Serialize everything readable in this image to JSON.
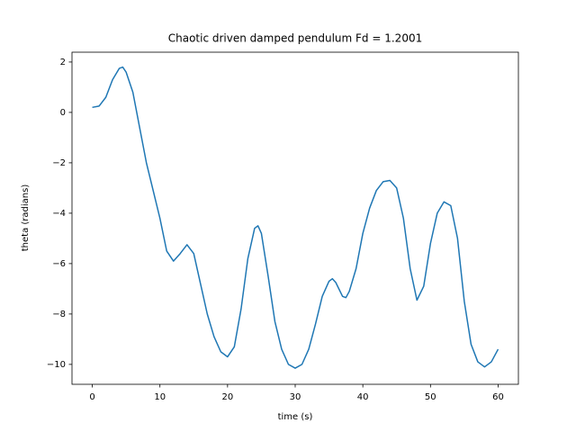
{
  "chart_data": {
    "type": "line",
    "title": "Chaotic driven damped pendulum Fd = 1.2001",
    "xlabel": "time (s)",
    "ylabel": "theta (radians)",
    "x": [
      0,
      1,
      2,
      3,
      4,
      4.5,
      5,
      6,
      7,
      8,
      9,
      10,
      11,
      12,
      13,
      14,
      15,
      16,
      17,
      18,
      19,
      20,
      21,
      22,
      23,
      24,
      24.5,
      25,
      26,
      27,
      28,
      29,
      30,
      31,
      32,
      33,
      34,
      35,
      35.5,
      36,
      37,
      37.5,
      38,
      39,
      40,
      41,
      42,
      43,
      44,
      45,
      46,
      47,
      48,
      49,
      50,
      51,
      52,
      53,
      54,
      55,
      56,
      57,
      58,
      59,
      60
    ],
    "series": [
      {
        "color": "#1f77b4",
        "values": [
          0.2,
          0.25,
          0.6,
          1.3,
          1.75,
          1.8,
          1.6,
          0.8,
          -0.6,
          -2,
          -3.1,
          -4.2,
          -5.5,
          -5.9,
          -5.6,
          -5.25,
          -5.6,
          -6.8,
          -8.0,
          -8.9,
          -9.5,
          -9.7,
          -9.3,
          -7.8,
          -5.8,
          -4.6,
          -4.5,
          -4.8,
          -6.5,
          -8.3,
          -9.4,
          -10.0,
          -10.15,
          -10.0,
          -9.4,
          -8.4,
          -7.3,
          -6.7,
          -6.6,
          -6.75,
          -7.3,
          -7.35,
          -7.1,
          -6.2,
          -4.8,
          -3.8,
          -3.1,
          -2.75,
          -2.7,
          -3.0,
          -4.2,
          -6.2,
          -7.45,
          -6.9,
          -5.2,
          -4.0,
          -3.55,
          -3.7,
          -5.0,
          -7.5,
          -9.2,
          -9.9,
          -10.1,
          -9.9,
          -9.4
        ]
      }
    ],
    "xlim": [
      -3,
      63
    ],
    "ylim": [
      -10.79,
      2.39
    ],
    "xticks": [
      0,
      10,
      20,
      30,
      40,
      50,
      60
    ],
    "yticks": [
      {
        "value": -10,
        "label": "−10"
      },
      {
        "value": -8,
        "label": "−8"
      },
      {
        "value": -6,
        "label": "−6"
      },
      {
        "value": -4,
        "label": "−4"
      },
      {
        "value": -2,
        "label": "−2"
      },
      0,
      2
    ],
    "grid": false
  }
}
